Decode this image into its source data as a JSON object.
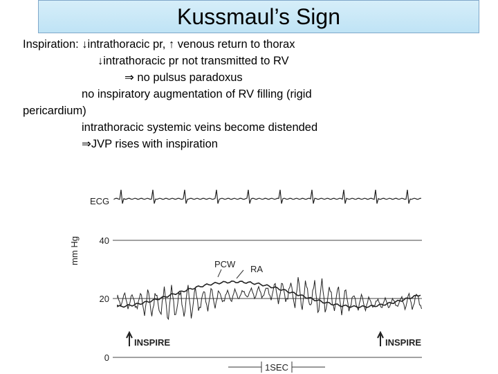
{
  "title": "Kussmaul’s Sign",
  "body": {
    "lines": [
      "Inspiration: ↓intrathoracic pr,  ↑ venous return to thorax",
      "↓intrathoracic pr not transmitted  to RV",
      "⇒ no pulsus paradoxus",
      "no inspiratory augmentation of RV filling (rigid pericardium)",
      "intrathoracic systemic veins become distended",
      "⇒JVP rises with inspiration"
    ]
  },
  "figure": {
    "ecg_label": "ECG",
    "y_axis_label": "mm Hg",
    "tick_40": "40",
    "tick_20": "20",
    "tick_0": "0",
    "pcw_label": "PCW",
    "ra_label": "RA",
    "inspire_left": "INSPIRE",
    "inspire_right": "INSPIRE",
    "time_scale": "1SEC"
  }
}
